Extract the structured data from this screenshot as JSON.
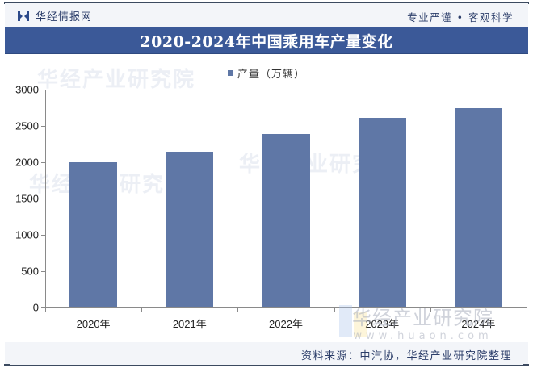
{
  "header": {
    "brand_name": "华经情报网",
    "slogan": "专业严谨 • 客观科学"
  },
  "title": "2020-2024年中国乘用车产量变化",
  "legend": {
    "label": "产量（万辆）",
    "color": "#5f77a6"
  },
  "watermark": {
    "text": "华经产业研究院",
    "url": "www.huaon.com"
  },
  "footer": {
    "source": "资料来源：中汽协，华经产业研究院整理"
  },
  "colors": {
    "title_bar": "#3b5998",
    "bar": "#5f77a6",
    "brand": "#2c3e6a"
  },
  "chart_data": {
    "type": "bar",
    "title": "2020-2024年中国乘用车产量变化",
    "categories": [
      "2020年",
      "2021年",
      "2022年",
      "2023年",
      "2024年"
    ],
    "series": [
      {
        "name": "产量（万辆）",
        "values": [
          1999,
          2141,
          2384,
          2612,
          2747
        ]
      }
    ],
    "xlabel": "",
    "ylabel": "",
    "ylim": [
      0,
      3000
    ],
    "yticks": [
      0,
      500,
      1000,
      1500,
      2000,
      2500,
      3000
    ],
    "grid": false,
    "legend_position": "top"
  }
}
